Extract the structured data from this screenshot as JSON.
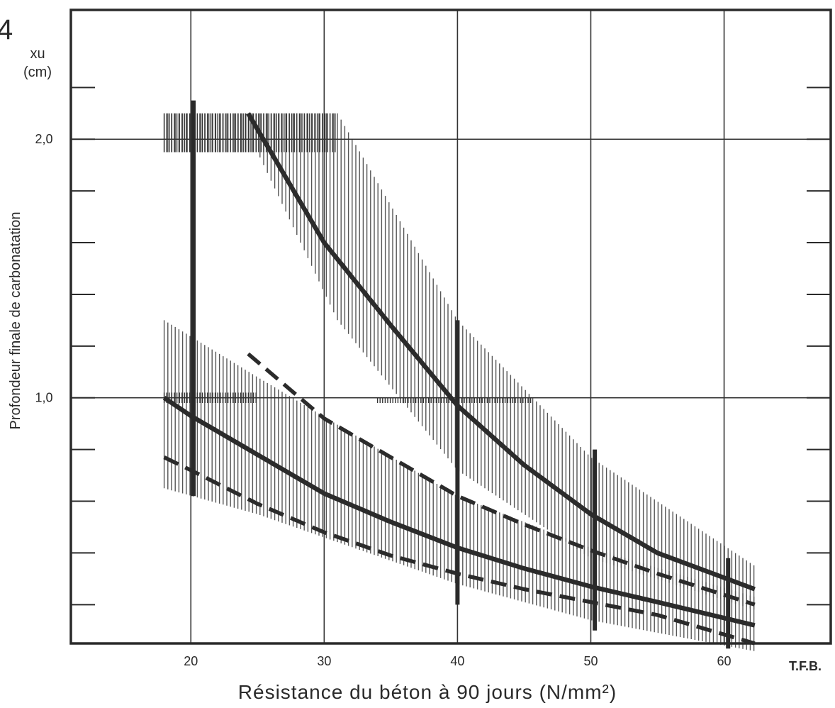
{
  "figure_number": "4",
  "chart_data": {
    "type": "line",
    "xlabel": "Résistance du béton à 90 jours (N/mm²)",
    "ylabel": "Profondeur finale de carbonatation",
    "ysymbol": "xu",
    "yunit": "(cm)",
    "source_mark": "T.F.B.",
    "xlim": [
      11,
      68
    ],
    "ylim": [
      0.05,
      2.5
    ],
    "xticks": [
      20,
      30,
      40,
      50,
      60
    ],
    "xtick_labels": [
      "20",
      "30",
      "40",
      "50",
      "60"
    ],
    "yticks_labeled": [
      1.0,
      2.0
    ],
    "ytick_labels": [
      "1,0",
      "2,0"
    ],
    "yticks_minor": [
      0.2,
      0.4,
      0.6,
      0.8,
      1.2,
      1.4,
      1.6,
      1.8,
      2.2
    ],
    "grid": true,
    "series": [
      {
        "style": "solid",
        "x": [
          24.3,
          30,
          35,
          40,
          45,
          50,
          55,
          62.3
        ],
        "y": [
          2.1,
          1.6,
          1.28,
          0.97,
          0.74,
          0.55,
          0.4,
          0.26
        ]
      },
      {
        "style": "dashed",
        "x": [
          24.3,
          30,
          35,
          40,
          45,
          50,
          55,
          62.3
        ],
        "y": [
          1.17,
          0.92,
          0.77,
          0.62,
          0.51,
          0.41,
          0.32,
          0.2
        ]
      },
      {
        "style": "solid",
        "x": [
          18,
          20,
          25,
          30,
          35,
          40,
          45,
          50,
          55,
          62.3
        ],
        "y": [
          1.0,
          0.93,
          0.78,
          0.63,
          0.52,
          0.42,
          0.34,
          0.27,
          0.21,
          0.12
        ]
      },
      {
        "style": "dashed",
        "x": [
          18,
          20,
          25,
          30,
          35,
          40,
          45,
          50,
          55,
          62.3
        ],
        "y": [
          0.77,
          0.72,
          0.59,
          0.48,
          0.39,
          0.32,
          0.26,
          0.21,
          0.16,
          0.05
        ]
      }
    ],
    "bands": [
      {
        "x0": 18,
        "x1": 62.3,
        "upper": [
          [
            18,
            2.1
          ],
          [
            31,
            2.1
          ],
          [
            40,
            1.3
          ],
          [
            50,
            0.77
          ],
          [
            62.3,
            0.35
          ]
        ],
        "lower": [
          [
            18,
            1.95
          ],
          [
            25,
            1.95
          ],
          [
            31,
            1.3
          ],
          [
            40,
            0.72
          ],
          [
            50,
            0.38
          ],
          [
            62.3,
            0.18
          ]
        ]
      },
      {
        "x0": 18,
        "x1": 62.3,
        "upper": [
          [
            18,
            1.3
          ],
          [
            25,
            1.08
          ],
          [
            40,
            0.62
          ],
          [
            50,
            0.42
          ],
          [
            62.3,
            0.23
          ]
        ],
        "lower": [
          [
            18,
            0.65
          ],
          [
            25,
            0.55
          ],
          [
            40,
            0.28
          ],
          [
            50,
            0.14
          ],
          [
            62.3,
            0.02
          ]
        ]
      }
    ],
    "dense_bands": [
      {
        "x0": 18,
        "x1": 31,
        "upper": [
          [
            18,
            2.1
          ],
          [
            31,
            2.1
          ]
        ],
        "lower": [
          [
            18,
            1.95
          ],
          [
            31,
            1.95
          ]
        ]
      },
      {
        "x0": 18,
        "x1": 25,
        "upper": [
          [
            18,
            1.02
          ],
          [
            25,
            1.02
          ]
        ],
        "lower": [
          [
            18,
            0.98
          ],
          [
            25,
            0.98
          ]
        ]
      },
      {
        "x0": 34,
        "x1": 45.5,
        "upper": [
          [
            34,
            1.0
          ],
          [
            45.5,
            1.0
          ]
        ],
        "lower": [
          [
            34,
            0.98
          ],
          [
            45.5,
            0.98
          ]
        ]
      }
    ],
    "thick_verticals": [
      {
        "x": 20.2,
        "y0": 0.62,
        "y1": 2.15
      },
      {
        "x": 40,
        "y0": 0.2,
        "y1": 1.3
      },
      {
        "x": 50.3,
        "y0": 0.1,
        "y1": 0.8
      },
      {
        "x": 60.3,
        "y0": 0.03,
        "y1": 0.38
      }
    ]
  }
}
